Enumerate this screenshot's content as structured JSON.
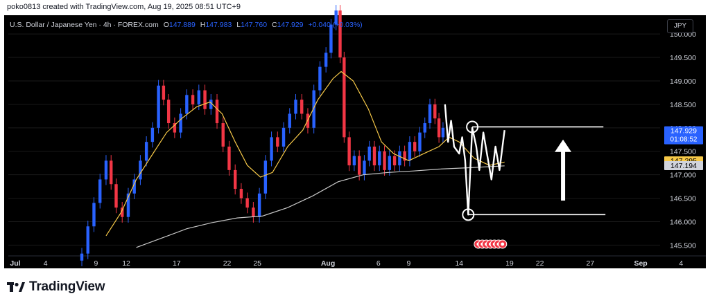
{
  "header": {
    "creator": "poko0813 created with TradingView.com, Aug 19, 2025 08:51 UTC+9"
  },
  "symbol": {
    "name": "U.S. Dollar / Japanese Yen · 4h · FOREX.com",
    "open_label": "O",
    "open": "147.889",
    "high_label": "H",
    "high": "147.983",
    "low_label": "L",
    "low": "147.760",
    "close_label": "C",
    "close": "147.929",
    "change": "+0.040 (+0.03%)"
  },
  "currency_button": "JPY",
  "footer": {
    "brand": "TradingView"
  },
  "colors": {
    "up": "#2962ff",
    "down": "#f23645",
    "ma_fast": "#f7c948",
    "ma_slow": "#c8c8c8",
    "last_price": "#2962ff",
    "ma_fast_tag": "#f7c948",
    "ma_slow_tag": "#d1d4dc"
  },
  "chart_data": {
    "type": "candlestick",
    "ylim": [
      145.3,
      150.4
    ],
    "y_ticks": [
      "150.000",
      "149.500",
      "149.000",
      "148.500",
      "148.000",
      "147.500",
      "147.000",
      "146.500",
      "146.000",
      "145.500"
    ],
    "x_ticks": [
      {
        "label": "Jul",
        "bold": true,
        "day": 0
      },
      {
        "label": "4",
        "bold": false,
        "day": 3
      },
      {
        "label": "9",
        "bold": false,
        "day": 8
      },
      {
        "label": "12",
        "bold": false,
        "day": 11
      },
      {
        "label": "17",
        "bold": false,
        "day": 16
      },
      {
        "label": "22",
        "bold": false,
        "day": 21
      },
      {
        "label": "25",
        "bold": false,
        "day": 24
      },
      {
        "label": "Aug",
        "bold": true,
        "day": 31
      },
      {
        "label": "6",
        "bold": false,
        "day": 36
      },
      {
        "label": "9",
        "bold": false,
        "day": 39
      },
      {
        "label": "14",
        "bold": false,
        "day": 44
      },
      {
        "label": "19",
        "bold": false,
        "day": 49
      },
      {
        "label": "22",
        "bold": false,
        "day": 52
      },
      {
        "label": "27",
        "bold": false,
        "day": 57
      },
      {
        "label": "Sep",
        "bold": true,
        "day": 62
      },
      {
        "label": "4",
        "bold": false,
        "day": 66
      }
    ],
    "closes": [
      {
        "day": 6.6,
        "close": 145.32
      },
      {
        "day": 7.2,
        "close": 145.9
      },
      {
        "day": 7.8,
        "close": 146.4
      },
      {
        "day": 8.4,
        "close": 146.9
      },
      {
        "day": 9.0,
        "close": 147.3
      },
      {
        "day": 9.5,
        "close": 146.8
      },
      {
        "day": 10.0,
        "close": 146.3
      },
      {
        "day": 10.6,
        "close": 146.1
      },
      {
        "day": 11.2,
        "close": 146.6
      },
      {
        "day": 11.8,
        "close": 146.9
      },
      {
        "day": 12.4,
        "close": 147.3
      },
      {
        "day": 13.0,
        "close": 147.7
      },
      {
        "day": 13.6,
        "close": 148.0
      },
      {
        "day": 14.2,
        "close": 148.9
      },
      {
        "day": 14.7,
        "close": 148.6
      },
      {
        "day": 15.2,
        "close": 148.1
      },
      {
        "day": 15.8,
        "close": 147.9
      },
      {
        "day": 16.4,
        "close": 148.3
      },
      {
        "day": 17.0,
        "close": 148.7
      },
      {
        "day": 17.6,
        "close": 148.5
      },
      {
        "day": 18.2,
        "close": 148.8
      },
      {
        "day": 18.8,
        "close": 148.4
      },
      {
        "day": 19.4,
        "close": 148.6
      },
      {
        "day": 20.0,
        "close": 148.1
      },
      {
        "day": 20.6,
        "close": 147.6
      },
      {
        "day": 21.2,
        "close": 147.1
      },
      {
        "day": 21.8,
        "close": 146.7
      },
      {
        "day": 22.4,
        "close": 146.5
      },
      {
        "day": 23.0,
        "close": 146.3
      },
      {
        "day": 23.6,
        "close": 146.1
      },
      {
        "day": 24.2,
        "close": 146.6
      },
      {
        "day": 24.8,
        "close": 147.3
      },
      {
        "day": 25.4,
        "close": 147.8
      },
      {
        "day": 26.0,
        "close": 147.6
      },
      {
        "day": 26.6,
        "close": 148.0
      },
      {
        "day": 27.2,
        "close": 148.3
      },
      {
        "day": 27.8,
        "close": 148.6
      },
      {
        "day": 28.4,
        "close": 148.3
      },
      {
        "day": 29.0,
        "close": 148.0
      },
      {
        "day": 29.6,
        "close": 148.8
      },
      {
        "day": 30.2,
        "close": 149.3
      },
      {
        "day": 30.8,
        "close": 149.6
      },
      {
        "day": 31.3,
        "close": 150.2
      },
      {
        "day": 31.8,
        "close": 150.5
      },
      {
        "day": 32.2,
        "close": 149.5
      },
      {
        "day": 32.6,
        "close": 147.8
      },
      {
        "day": 33.1,
        "close": 147.2
      },
      {
        "day": 33.6,
        "close": 147.4
      },
      {
        "day": 34.1,
        "close": 147.0
      },
      {
        "day": 34.6,
        "close": 147.3
      },
      {
        "day": 35.1,
        "close": 147.6
      },
      {
        "day": 35.6,
        "close": 147.2
      },
      {
        "day": 36.1,
        "close": 147.5
      },
      {
        "day": 36.6,
        "close": 147.1
      },
      {
        "day": 37.1,
        "close": 147.4
      },
      {
        "day": 37.6,
        "close": 147.2
      },
      {
        "day": 38.1,
        "close": 147.5
      },
      {
        "day": 38.6,
        "close": 147.3
      },
      {
        "day": 39.1,
        "close": 147.7
      },
      {
        "day": 39.6,
        "close": 147.5
      },
      {
        "day": 40.1,
        "close": 147.9
      },
      {
        "day": 40.6,
        "close": 148.1
      },
      {
        "day": 41.1,
        "close": 148.5
      },
      {
        "day": 41.6,
        "close": 148.2
      },
      {
        "day": 42.0,
        "close": 147.8
      },
      {
        "day": 42.4,
        "close": 148.0
      }
    ],
    "ma_fast": [
      {
        "day": 9.0,
        "v": 145.7
      },
      {
        "day": 10.5,
        "v": 146.2
      },
      {
        "day": 12.0,
        "v": 146.9
      },
      {
        "day": 13.5,
        "v": 147.4
      },
      {
        "day": 15.0,
        "v": 147.9
      },
      {
        "day": 16.5,
        "v": 148.2
      },
      {
        "day": 18.0,
        "v": 148.45
      },
      {
        "day": 19.3,
        "v": 148.55
      },
      {
        "day": 20.5,
        "v": 148.3
      },
      {
        "day": 21.8,
        "v": 147.7
      },
      {
        "day": 23.0,
        "v": 147.2
      },
      {
        "day": 24.3,
        "v": 146.95
      },
      {
        "day": 25.5,
        "v": 147.05
      },
      {
        "day": 27.0,
        "v": 147.6
      },
      {
        "day": 28.5,
        "v": 147.95
      },
      {
        "day": 30.0,
        "v": 148.6
      },
      {
        "day": 31.5,
        "v": 149.05
      },
      {
        "day": 32.3,
        "v": 149.2
      },
      {
        "day": 33.5,
        "v": 149.0
      },
      {
        "day": 35.0,
        "v": 148.4
      },
      {
        "day": 36.3,
        "v": 147.7
      },
      {
        "day": 37.5,
        "v": 147.45
      },
      {
        "day": 39.0,
        "v": 147.3
      },
      {
        "day": 40.5,
        "v": 147.45
      },
      {
        "day": 42.0,
        "v": 147.6
      },
      {
        "day": 43.0,
        "v": 147.8
      },
      {
        "day": 44.0,
        "v": 147.7
      },
      {
        "day": 45.5,
        "v": 147.35
      },
      {
        "day": 47.0,
        "v": 147.2
      },
      {
        "day": 48.5,
        "v": 147.27
      }
    ],
    "ma_slow": [
      {
        "day": 12.0,
        "v": 145.45
      },
      {
        "day": 14.5,
        "v": 145.65
      },
      {
        "day": 17.0,
        "v": 145.85
      },
      {
        "day": 19.5,
        "v": 145.98
      },
      {
        "day": 22.0,
        "v": 146.08
      },
      {
        "day": 24.5,
        "v": 146.12
      },
      {
        "day": 27.0,
        "v": 146.3
      },
      {
        "day": 29.5,
        "v": 146.55
      },
      {
        "day": 32.0,
        "v": 146.85
      },
      {
        "day": 34.5,
        "v": 147.0
      },
      {
        "day": 37.0,
        "v": 147.05
      },
      {
        "day": 39.5,
        "v": 147.08
      },
      {
        "day": 42.0,
        "v": 147.12
      },
      {
        "day": 45.0,
        "v": 147.15
      },
      {
        "day": 48.5,
        "v": 147.19
      }
    ],
    "drawing_path": [
      {
        "day": 42.6,
        "v": 148.5
      },
      {
        "day": 42.9,
        "v": 147.7
      },
      {
        "day": 43.2,
        "v": 148.15
      },
      {
        "day": 43.5,
        "v": 147.6
      },
      {
        "day": 44.0,
        "v": 147.45
      },
      {
        "day": 44.3,
        "v": 147.8
      },
      {
        "day": 44.6,
        "v": 147.3
      },
      {
        "day": 44.9,
        "v": 146.15
      },
      {
        "day": 45.3,
        "v": 148.0
      },
      {
        "day": 45.7,
        "v": 147.6
      },
      {
        "day": 46.0,
        "v": 147.1
      },
      {
        "day": 46.4,
        "v": 147.9
      },
      {
        "day": 46.8,
        "v": 147.4
      },
      {
        "day": 47.2,
        "v": 146.9
      },
      {
        "day": 47.6,
        "v": 147.6
      },
      {
        "day": 48.0,
        "v": 147.1
      },
      {
        "day": 48.5,
        "v": 147.95
      }
    ],
    "resistance": {
      "value": 148.02,
      "day_from": 45.3,
      "day_to": 58.3
    },
    "support": {
      "value": 146.15,
      "day_from": 44.9,
      "day_to": 58.5
    },
    "markers": [
      {
        "day": 45.3,
        "v": 148.02
      },
      {
        "day": 44.9,
        "v": 146.15
      }
    ],
    "arrow": {
      "day": 54.3,
      "from": 146.45,
      "to": 147.75
    },
    "price_tags": [
      {
        "value": 147.929,
        "label": "147.929",
        "sub": "01:08:52",
        "kind": "last"
      },
      {
        "value": 147.295,
        "label": "147.295",
        "kind": "ma_fast"
      },
      {
        "value": 147.194,
        "label": "147.194",
        "kind": "ma_slow"
      }
    ],
    "event_icons_day": [
      45.9,
      46.3,
      46.7,
      47.1,
      47.5,
      47.9,
      48.3
    ]
  }
}
